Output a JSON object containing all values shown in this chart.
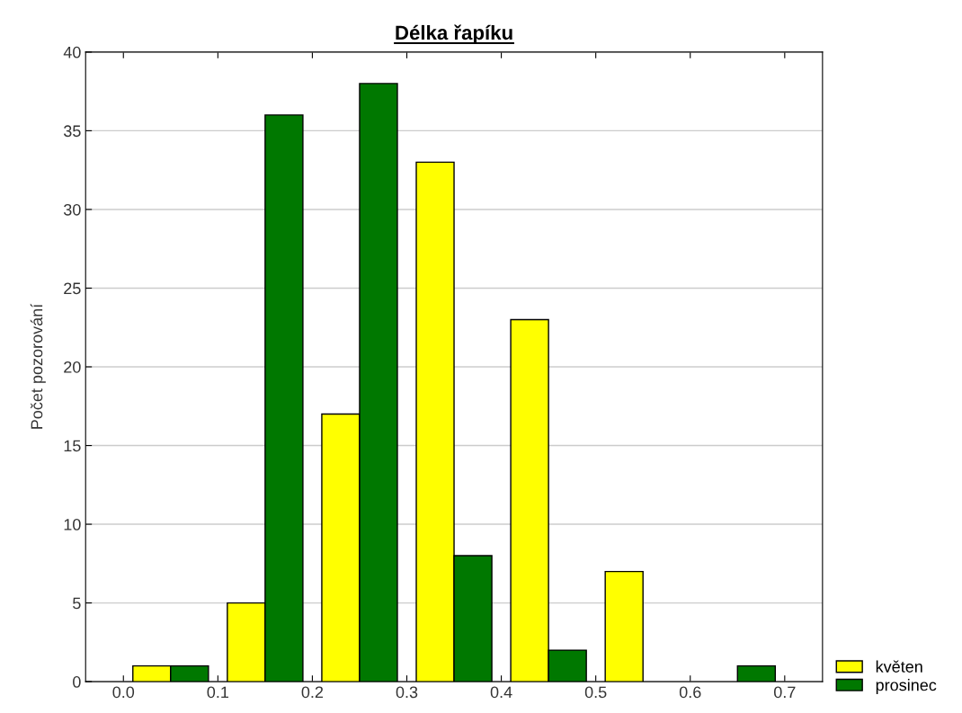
{
  "chart_data": {
    "type": "histogram",
    "title": "Délka řapíku",
    "ylabel": "Počet pozorování",
    "bins": [
      0.0,
      0.1,
      0.2,
      0.3,
      0.4,
      0.5,
      0.6,
      0.7
    ],
    "series": [
      {
        "name": "květen",
        "color": "#ffff00",
        "values": [
          1,
          5,
          17,
          33,
          23,
          7,
          0
        ]
      },
      {
        "name": "prosinec",
        "color": "#007800",
        "values": [
          1,
          36,
          38,
          8,
          2,
          0,
          1
        ]
      }
    ],
    "xlim": [
      -0.04,
      0.74
    ],
    "xticks": [
      {
        "value": 0,
        "label": "0.0"
      },
      0.1,
      0.2,
      0.3,
      0.4,
      0.5,
      0.6,
      0.7
    ],
    "ylim": [
      0,
      40
    ],
    "yticks": [
      0,
      5,
      10,
      15,
      20,
      25,
      30,
      35,
      40
    ],
    "grid": "y",
    "legend": "bottom right"
  }
}
